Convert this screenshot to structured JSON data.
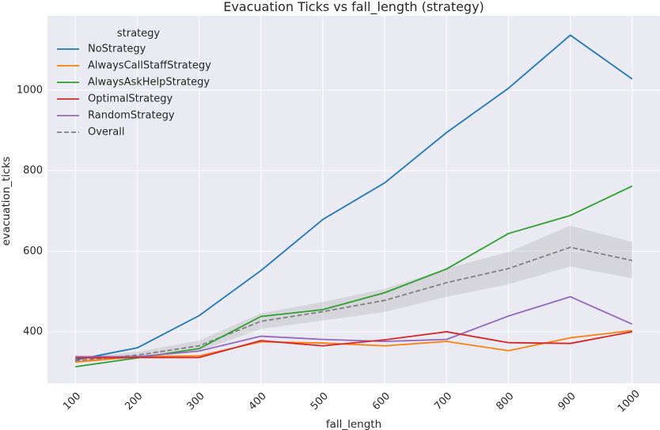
{
  "chart_data": {
    "type": "line",
    "title": "Evacuation Ticks vs fall_length (strategy)",
    "xlabel": "fall_length",
    "ylabel": "evacuation_ticks",
    "x": [
      100,
      200,
      300,
      400,
      500,
      600,
      700,
      800,
      900,
      1000
    ],
    "xlim": [
      55,
      1045
    ],
    "ylim": [
      272,
      1185
    ],
    "yticks": [
      400,
      600,
      800,
      1000
    ],
    "grid": true,
    "legend": {
      "title": "strategy",
      "placement": "top-left"
    },
    "series": [
      {
        "name": "NoStrategy",
        "color": "#1f77b4",
        "dashed": false,
        "values": [
          330,
          360,
          440,
          552,
          679,
          770,
          895,
          1005,
          1137,
          1028
        ]
      },
      {
        "name": "AlwaysCallStaffStrategy",
        "color": "#ff7f0e",
        "dashed": false,
        "values": [
          325,
          338,
          340,
          375,
          372,
          365,
          376,
          353,
          385,
          403
        ]
      },
      {
        "name": "AlwaysAskHelpStrategy",
        "color": "#2ca02c",
        "dashed": false,
        "values": [
          313,
          335,
          358,
          438,
          455,
          497,
          556,
          644,
          689,
          762
        ]
      },
      {
        "name": "OptimalStrategy",
        "color": "#d62728",
        "dashed": false,
        "values": [
          335,
          336,
          336,
          378,
          365,
          380,
          400,
          373,
          371,
          400
        ]
      },
      {
        "name": "RandomStrategy",
        "color": "#9467bd",
        "dashed": false,
        "values": [
          338,
          338,
          352,
          389,
          381,
          376,
          381,
          439,
          487,
          419
        ]
      },
      {
        "name": "Overall",
        "color": "#808080",
        "dashed": true,
        "values": [
          328,
          342,
          365,
          426,
          450,
          478,
          522,
          557,
          610,
          577
        ],
        "ci_low": [
          322,
          335,
          352,
          407,
          428,
          449,
          487,
          518,
          562,
          533
        ],
        "ci_high": [
          335,
          350,
          378,
          446,
          474,
          507,
          557,
          598,
          664,
          623
        ]
      }
    ]
  }
}
